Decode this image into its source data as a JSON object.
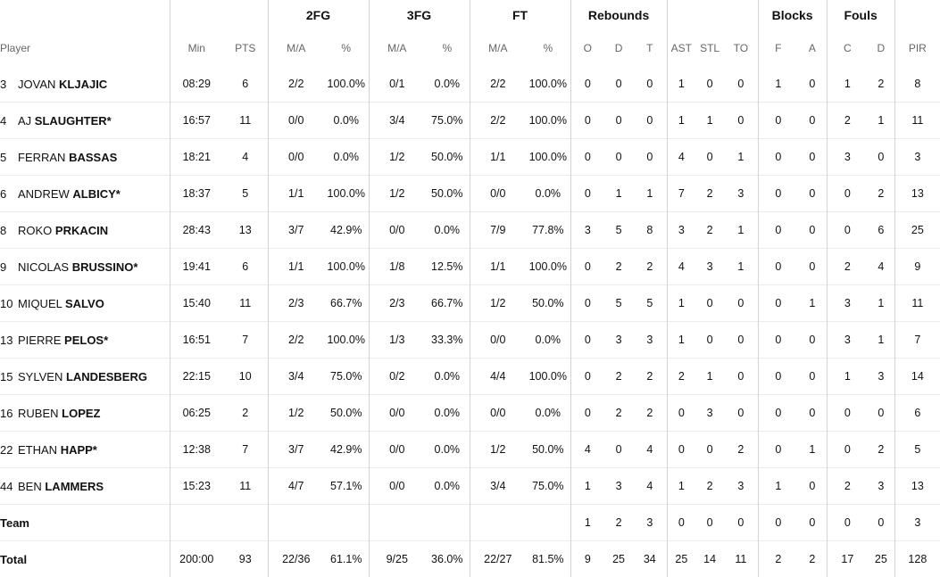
{
  "headers": {
    "groups": [
      "2FG",
      "3FG",
      "FT",
      "Rebounds",
      "Blocks",
      "Fouls"
    ],
    "player": "Player",
    "min": "Min",
    "pts": "PTS",
    "ma": "M/A",
    "pct": "%",
    "reb": [
      "O",
      "D",
      "T"
    ],
    "ast": "AST",
    "stl": "STL",
    "to": "TO",
    "blk": [
      "F",
      "A"
    ],
    "fouls": [
      "C",
      "D"
    ],
    "pir": "PIR"
  },
  "players": [
    {
      "no": "3",
      "first": "Jovan",
      "last": "Kljajic",
      "min": "08:29",
      "pts": "6",
      "fg2": "2/2",
      "fg2p": "100.0%",
      "fg3": "0/1",
      "fg3p": "0.0%",
      "ft": "2/2",
      "ftp": "100.0%",
      "o": "0",
      "d": "0",
      "t": "0",
      "ast": "1",
      "stl": "0",
      "to": "0",
      "bf": "1",
      "ba": "0",
      "fc": "1",
      "fd": "2",
      "pir": "8"
    },
    {
      "no": "4",
      "first": "AJ",
      "last": "Slaughter*",
      "min": "16:57",
      "pts": "11",
      "fg2": "0/0",
      "fg2p": "0.0%",
      "fg3": "3/4",
      "fg3p": "75.0%",
      "ft": "2/2",
      "ftp": "100.0%",
      "o": "0",
      "d": "0",
      "t": "0",
      "ast": "1",
      "stl": "1",
      "to": "0",
      "bf": "0",
      "ba": "0",
      "fc": "2",
      "fd": "1",
      "pir": "11"
    },
    {
      "no": "5",
      "first": "Ferran",
      "last": "Bassas",
      "min": "18:21",
      "pts": "4",
      "fg2": "0/0",
      "fg2p": "0.0%",
      "fg3": "1/2",
      "fg3p": "50.0%",
      "ft": "1/1",
      "ftp": "100.0%",
      "o": "0",
      "d": "0",
      "t": "0",
      "ast": "4",
      "stl": "0",
      "to": "1",
      "bf": "0",
      "ba": "0",
      "fc": "3",
      "fd": "0",
      "pir": "3"
    },
    {
      "no": "6",
      "first": "Andrew",
      "last": "Albicy*",
      "min": "18:37",
      "pts": "5",
      "fg2": "1/1",
      "fg2p": "100.0%",
      "fg3": "1/2",
      "fg3p": "50.0%",
      "ft": "0/0",
      "ftp": "0.0%",
      "o": "0",
      "d": "1",
      "t": "1",
      "ast": "7",
      "stl": "2",
      "to": "3",
      "bf": "0",
      "ba": "0",
      "fc": "0",
      "fd": "2",
      "pir": "13"
    },
    {
      "no": "8",
      "first": "Roko",
      "last": "Prkacin",
      "min": "28:43",
      "pts": "13",
      "fg2": "3/7",
      "fg2p": "42.9%",
      "fg3": "0/0",
      "fg3p": "0.0%",
      "ft": "7/9",
      "ftp": "77.8%",
      "o": "3",
      "d": "5",
      "t": "8",
      "ast": "3",
      "stl": "2",
      "to": "1",
      "bf": "0",
      "ba": "0",
      "fc": "0",
      "fd": "6",
      "pir": "25"
    },
    {
      "no": "9",
      "first": "Nicolas",
      "last": "Brussino*",
      "min": "19:41",
      "pts": "6",
      "fg2": "1/1",
      "fg2p": "100.0%",
      "fg3": "1/8",
      "fg3p": "12.5%",
      "ft": "1/1",
      "ftp": "100.0%",
      "o": "0",
      "d": "2",
      "t": "2",
      "ast": "4",
      "stl": "3",
      "to": "1",
      "bf": "0",
      "ba": "0",
      "fc": "2",
      "fd": "4",
      "pir": "9"
    },
    {
      "no": "10",
      "first": "Miquel",
      "last": "Salvo",
      "min": "15:40",
      "pts": "11",
      "fg2": "2/3",
      "fg2p": "66.7%",
      "fg3": "2/3",
      "fg3p": "66.7%",
      "ft": "1/2",
      "ftp": "50.0%",
      "o": "0",
      "d": "5",
      "t": "5",
      "ast": "1",
      "stl": "0",
      "to": "0",
      "bf": "0",
      "ba": "1",
      "fc": "3",
      "fd": "1",
      "pir": "11"
    },
    {
      "no": "13",
      "first": "Pierre",
      "last": "Pelos*",
      "min": "16:51",
      "pts": "7",
      "fg2": "2/2",
      "fg2p": "100.0%",
      "fg3": "1/3",
      "fg3p": "33.3%",
      "ft": "0/0",
      "ftp": "0.0%",
      "o": "0",
      "d": "3",
      "t": "3",
      "ast": "1",
      "stl": "0",
      "to": "0",
      "bf": "0",
      "ba": "0",
      "fc": "3",
      "fd": "1",
      "pir": "7"
    },
    {
      "no": "15",
      "first": "Sylven",
      "last": "Landesberg",
      "min": "22:15",
      "pts": "10",
      "fg2": "3/4",
      "fg2p": "75.0%",
      "fg3": "0/2",
      "fg3p": "0.0%",
      "ft": "4/4",
      "ftp": "100.0%",
      "o": "0",
      "d": "2",
      "t": "2",
      "ast": "2",
      "stl": "1",
      "to": "0",
      "bf": "0",
      "ba": "0",
      "fc": "1",
      "fd": "3",
      "pir": "14"
    },
    {
      "no": "16",
      "first": "Ruben",
      "last": "Lopez",
      "min": "06:25",
      "pts": "2",
      "fg2": "1/2",
      "fg2p": "50.0%",
      "fg3": "0/0",
      "fg3p": "0.0%",
      "ft": "0/0",
      "ftp": "0.0%",
      "o": "0",
      "d": "2",
      "t": "2",
      "ast": "0",
      "stl": "3",
      "to": "0",
      "bf": "0",
      "ba": "0",
      "fc": "0",
      "fd": "0",
      "pir": "6"
    },
    {
      "no": "22",
      "first": "Ethan",
      "last": "Happ*",
      "min": "12:38",
      "pts": "7",
      "fg2": "3/7",
      "fg2p": "42.9%",
      "fg3": "0/0",
      "fg3p": "0.0%",
      "ft": "1/2",
      "ftp": "50.0%",
      "o": "4",
      "d": "0",
      "t": "4",
      "ast": "0",
      "stl": "0",
      "to": "2",
      "bf": "0",
      "ba": "1",
      "fc": "0",
      "fd": "2",
      "pir": "5"
    },
    {
      "no": "44",
      "first": "Ben",
      "last": "Lammers",
      "min": "15:23",
      "pts": "11",
      "fg2": "4/7",
      "fg2p": "57.1%",
      "fg3": "0/0",
      "fg3p": "0.0%",
      "ft": "3/4",
      "ftp": "75.0%",
      "o": "1",
      "d": "3",
      "t": "4",
      "ast": "1",
      "stl": "2",
      "to": "3",
      "bf": "1",
      "ba": "0",
      "fc": "2",
      "fd": "3",
      "pir": "13"
    }
  ],
  "team": {
    "label": "Team",
    "min": "",
    "pts": "",
    "fg2": "",
    "fg2p": "",
    "fg3": "",
    "fg3p": "",
    "ft": "",
    "ftp": "",
    "o": "1",
    "d": "2",
    "t": "3",
    "ast": "0",
    "stl": "0",
    "to": "0",
    "bf": "0",
    "ba": "0",
    "fc": "0",
    "fd": "0",
    "pir": "3"
  },
  "total": {
    "label": "Total",
    "min": "200:00",
    "pts": "93",
    "fg2": "22/36",
    "fg2p": "61.1%",
    "fg3": "9/25",
    "fg3p": "36.0%",
    "ft": "22/27",
    "ftp": "81.5%",
    "o": "9",
    "d": "25",
    "t": "34",
    "ast": "25",
    "stl": "14",
    "to": "11",
    "bf": "2",
    "ba": "2",
    "fc": "17",
    "fd": "25",
    "pir": "128"
  }
}
